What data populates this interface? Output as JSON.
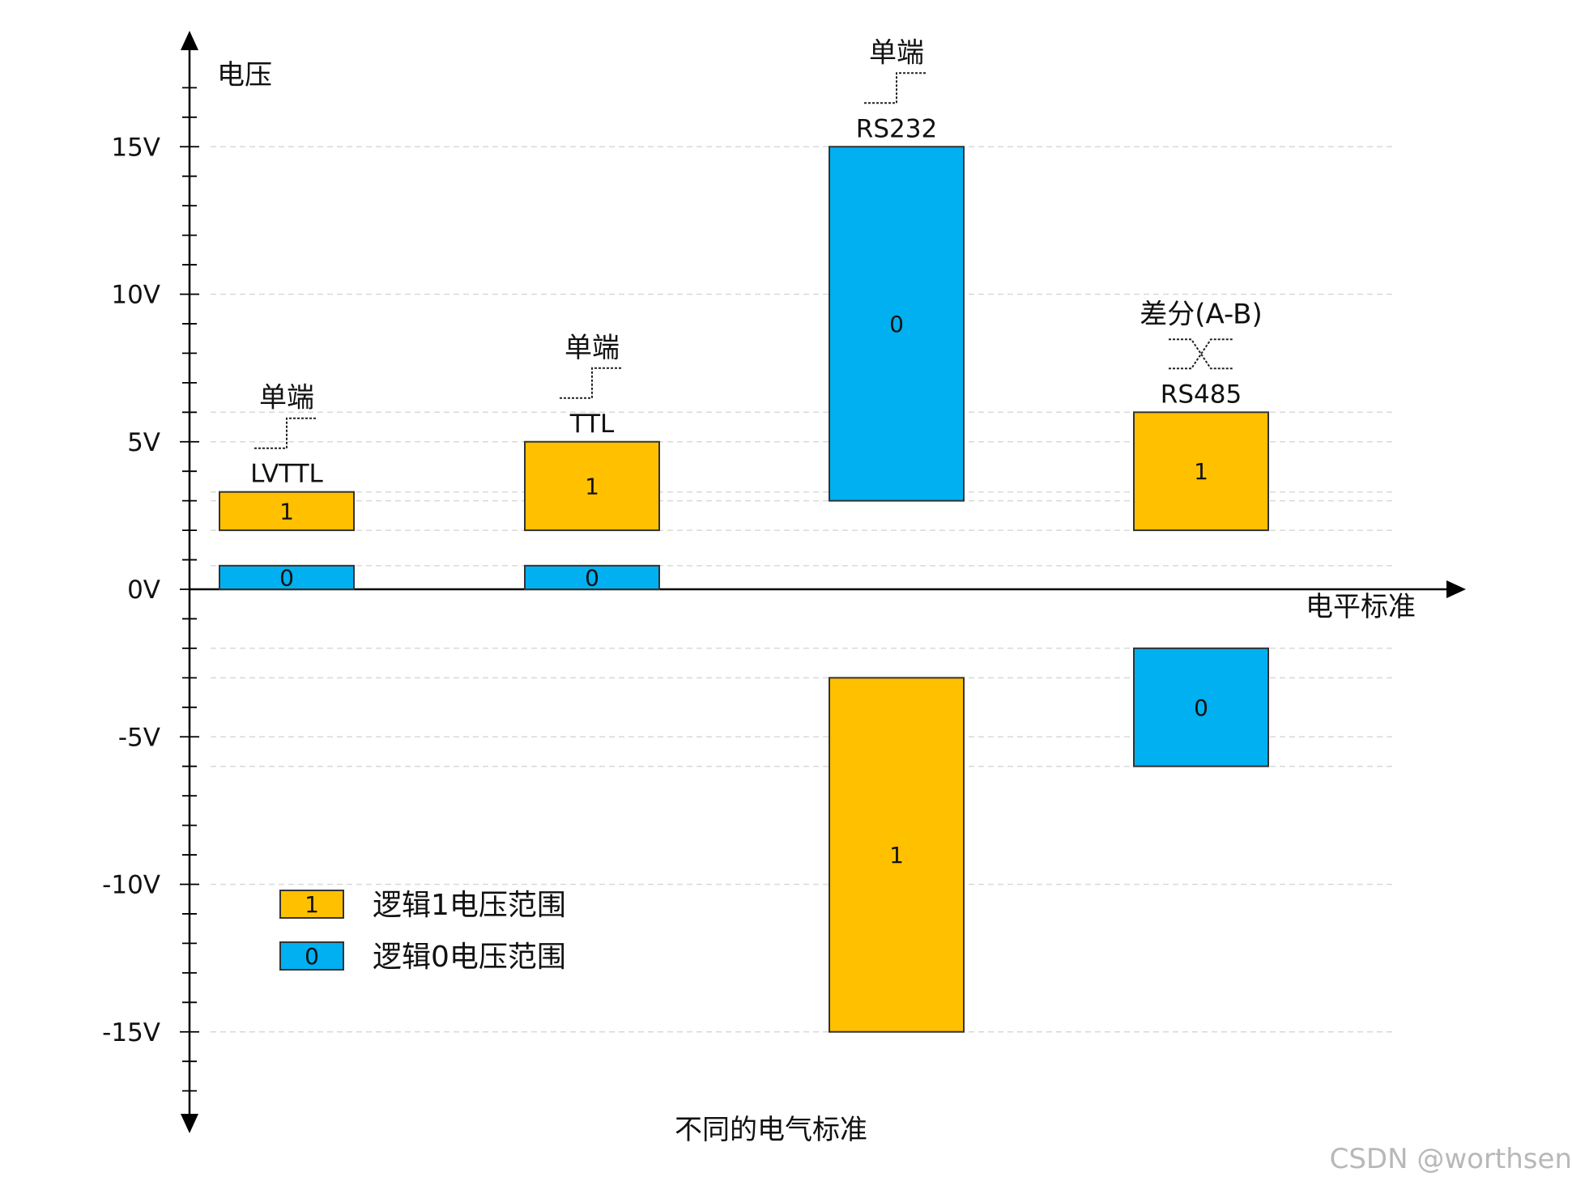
{
  "chart_data": {
    "type": "bar",
    "title": "不同的电气标准",
    "xlabel": "电平标准",
    "ylabel": "电压",
    "ylim": [
      -18,
      18
    ],
    "y_ticks": [
      15,
      10,
      5,
      0,
      -5,
      -10,
      -15
    ],
    "y_tick_labels": [
      "15V",
      "10V",
      "5V",
      "0V",
      "-5V",
      "-10V",
      "-15V"
    ],
    "grid": true,
    "legend": {
      "placement": "lower-left",
      "entries": [
        {
          "key": "1",
          "label": "逻辑1电压范围",
          "color": "#FFC000"
        },
        {
          "key": "0",
          "label": "逻辑0电压范围",
          "color": "#00B0F0"
        }
      ]
    },
    "colors": {
      "logic1": "#FFC000",
      "logic0": "#00B0F0",
      "grid": "#d9d9d9",
      "border": "#333333"
    },
    "standards": [
      {
        "name": "LVTTL",
        "signal_type": "单端",
        "signal_icon": "single-ended-step",
        "ranges": [
          {
            "logic": "1",
            "low": 2.0,
            "high": 3.3
          },
          {
            "logic": "0",
            "low": 0.0,
            "high": 0.8
          }
        ]
      },
      {
        "name": "TTL",
        "signal_type": "单端",
        "signal_icon": "single-ended-step",
        "ranges": [
          {
            "logic": "1",
            "low": 2.0,
            "high": 5.0
          },
          {
            "logic": "0",
            "low": 0.0,
            "high": 0.8
          }
        ]
      },
      {
        "name": "RS232",
        "signal_type": "单端",
        "signal_icon": "single-ended-step",
        "ranges": [
          {
            "logic": "0",
            "low": 3.0,
            "high": 15.0
          },
          {
            "logic": "1",
            "low": -15.0,
            "high": -3.0
          }
        ]
      },
      {
        "name": "RS485",
        "signal_type": "差分(A-B)",
        "signal_icon": "differential-cross",
        "ranges": [
          {
            "logic": "1",
            "low": 2.0,
            "high": 6.0
          },
          {
            "logic": "0",
            "low": -6.0,
            "high": -2.0
          }
        ]
      }
    ]
  },
  "watermark": "CSDN @worthsen"
}
